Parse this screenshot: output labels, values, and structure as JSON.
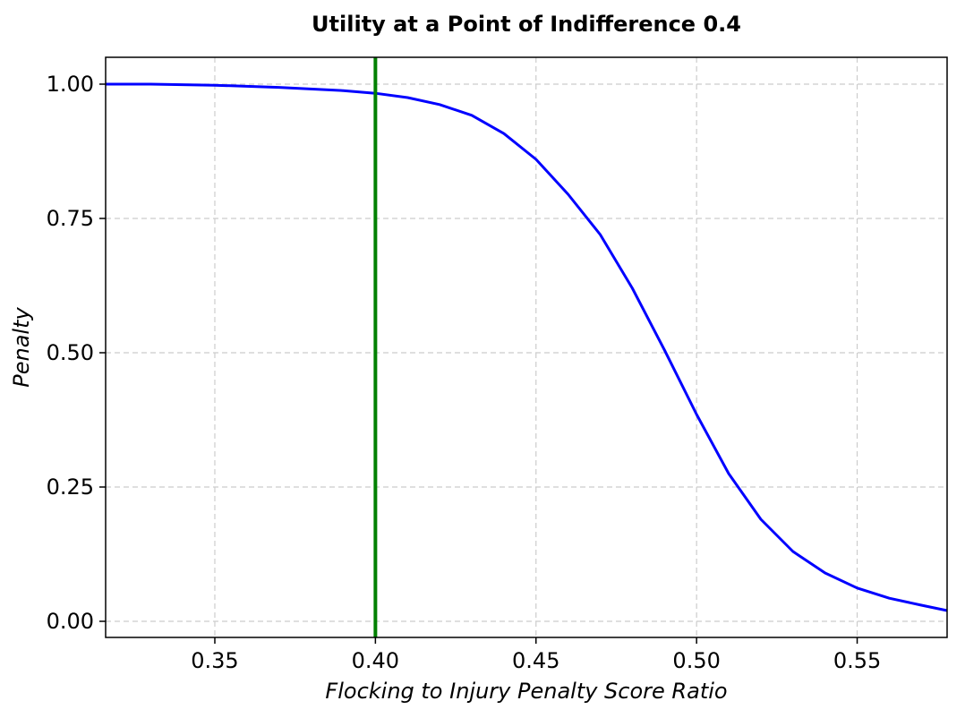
{
  "chart_data": {
    "type": "line",
    "title": "Utility at a Point of Indifference 0.4",
    "xlabel": "Flocking to Injury Penalty Score Ratio",
    "ylabel": "Penalty",
    "xlim": [
      0.316,
      0.578
    ],
    "ylim": [
      -0.03,
      1.05
    ],
    "xticks": [
      0.35,
      0.4,
      0.45,
      0.5,
      0.55
    ],
    "xtick_labels": [
      "0.35",
      "0.40",
      "0.45",
      "0.50",
      "0.55"
    ],
    "yticks": [
      0.0,
      0.25,
      0.5,
      0.75,
      1.0
    ],
    "ytick_labels": [
      "0.00",
      "0.25",
      "0.50",
      "0.75",
      "1.00"
    ],
    "grid": true,
    "series": [
      {
        "color": "#0000ff",
        "x": [
          0.316,
          0.33,
          0.35,
          0.37,
          0.39,
          0.4,
          0.41,
          0.42,
          0.43,
          0.44,
          0.45,
          0.46,
          0.47,
          0.48,
          0.49,
          0.5,
          0.51,
          0.52,
          0.53,
          0.54,
          0.55,
          0.56,
          0.57,
          0.578
        ],
        "y": [
          1.0,
          1.0,
          0.998,
          0.994,
          0.988,
          0.983,
          0.975,
          0.962,
          0.942,
          0.908,
          0.86,
          0.795,
          0.72,
          0.62,
          0.505,
          0.385,
          0.275,
          0.19,
          0.13,
          0.09,
          0.062,
          0.043,
          0.03,
          0.02
        ]
      }
    ],
    "vlines": [
      {
        "x": 0.4,
        "color": "#008000"
      }
    ]
  }
}
